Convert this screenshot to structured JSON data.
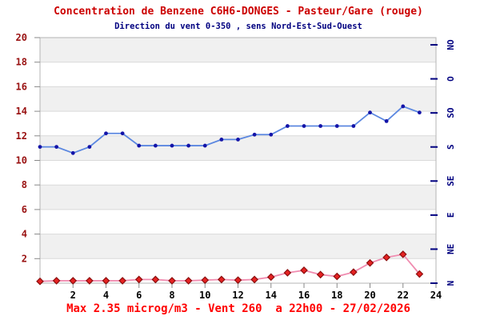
{
  "chart_data": {
    "type": "line",
    "title": "Concentration de Benzene C6H6-DONGES - Pasteur/Gare (rouge)",
    "subtitle": "Direction du vent 0-350 , sens Nord-Est-Sud-Ouest",
    "footer": "Max 2.35 microg/m3 - Vent 260  a 22h00 - 27/02/2026",
    "x": [
      0,
      1,
      2,
      3,
      4,
      5,
      6,
      7,
      8,
      9,
      10,
      11,
      12,
      13,
      14,
      15,
      16,
      17,
      18,
      19,
      20,
      21,
      22,
      23
    ],
    "x_ticks": [
      2,
      4,
      6,
      8,
      10,
      12,
      14,
      16,
      18,
      20,
      22,
      24
    ],
    "ylim": [
      0,
      20
    ],
    "y_ticks": [
      2,
      4,
      6,
      8,
      10,
      12,
      14,
      16,
      18,
      20
    ],
    "right_axis_labels": [
      "N",
      "NE",
      "E",
      "SE",
      "S",
      "SO",
      "O",
      "NO"
    ],
    "grid": "horizontal-bands-every-2-units",
    "legend": "none",
    "series": [
      {
        "name": "Direction du vent (0-350, echelle gauche 0-20)",
        "type": "line",
        "marker": "circle",
        "line_color": "#5b87e0",
        "marker_color": "#1414a8",
        "values": [
          11.1,
          11.1,
          10.6,
          11.1,
          12.2,
          12.2,
          11.2,
          11.2,
          11.2,
          11.2,
          11.2,
          11.7,
          11.7,
          12.1,
          12.1,
          12.8,
          12.8,
          12.8,
          12.8,
          12.8,
          13.9,
          13.2,
          14.4,
          13.9
        ]
      },
      {
        "name": "Concentration de Benzene C6H6 (microg/m3)",
        "type": "line",
        "marker": "diamond",
        "line_color": "#f08cb0",
        "marker_color": "#e62222",
        "marker_stroke": "#8b0f0f",
        "values": [
          0.15,
          0.2,
          0.2,
          0.2,
          0.2,
          0.2,
          0.3,
          0.3,
          0.2,
          0.2,
          0.25,
          0.3,
          0.25,
          0.3,
          0.5,
          0.85,
          1.05,
          0.7,
          0.55,
          0.9,
          1.65,
          2.1,
          2.35,
          0.75
        ]
      }
    ],
    "colors": {
      "title": "#cc0000",
      "subtitle": "#000080",
      "footer": "#ff0000",
      "y_axis_labels": "#991111",
      "x_axis_labels": "#000000",
      "right_axis_labels": "#000080",
      "right_ticks": "#000080",
      "axis_ticks": "#888888",
      "band_gray": "#f0f0f0",
      "band_white": "#ffffff",
      "gridline": "#d9d9d9",
      "border": "#b5b5b5"
    }
  }
}
